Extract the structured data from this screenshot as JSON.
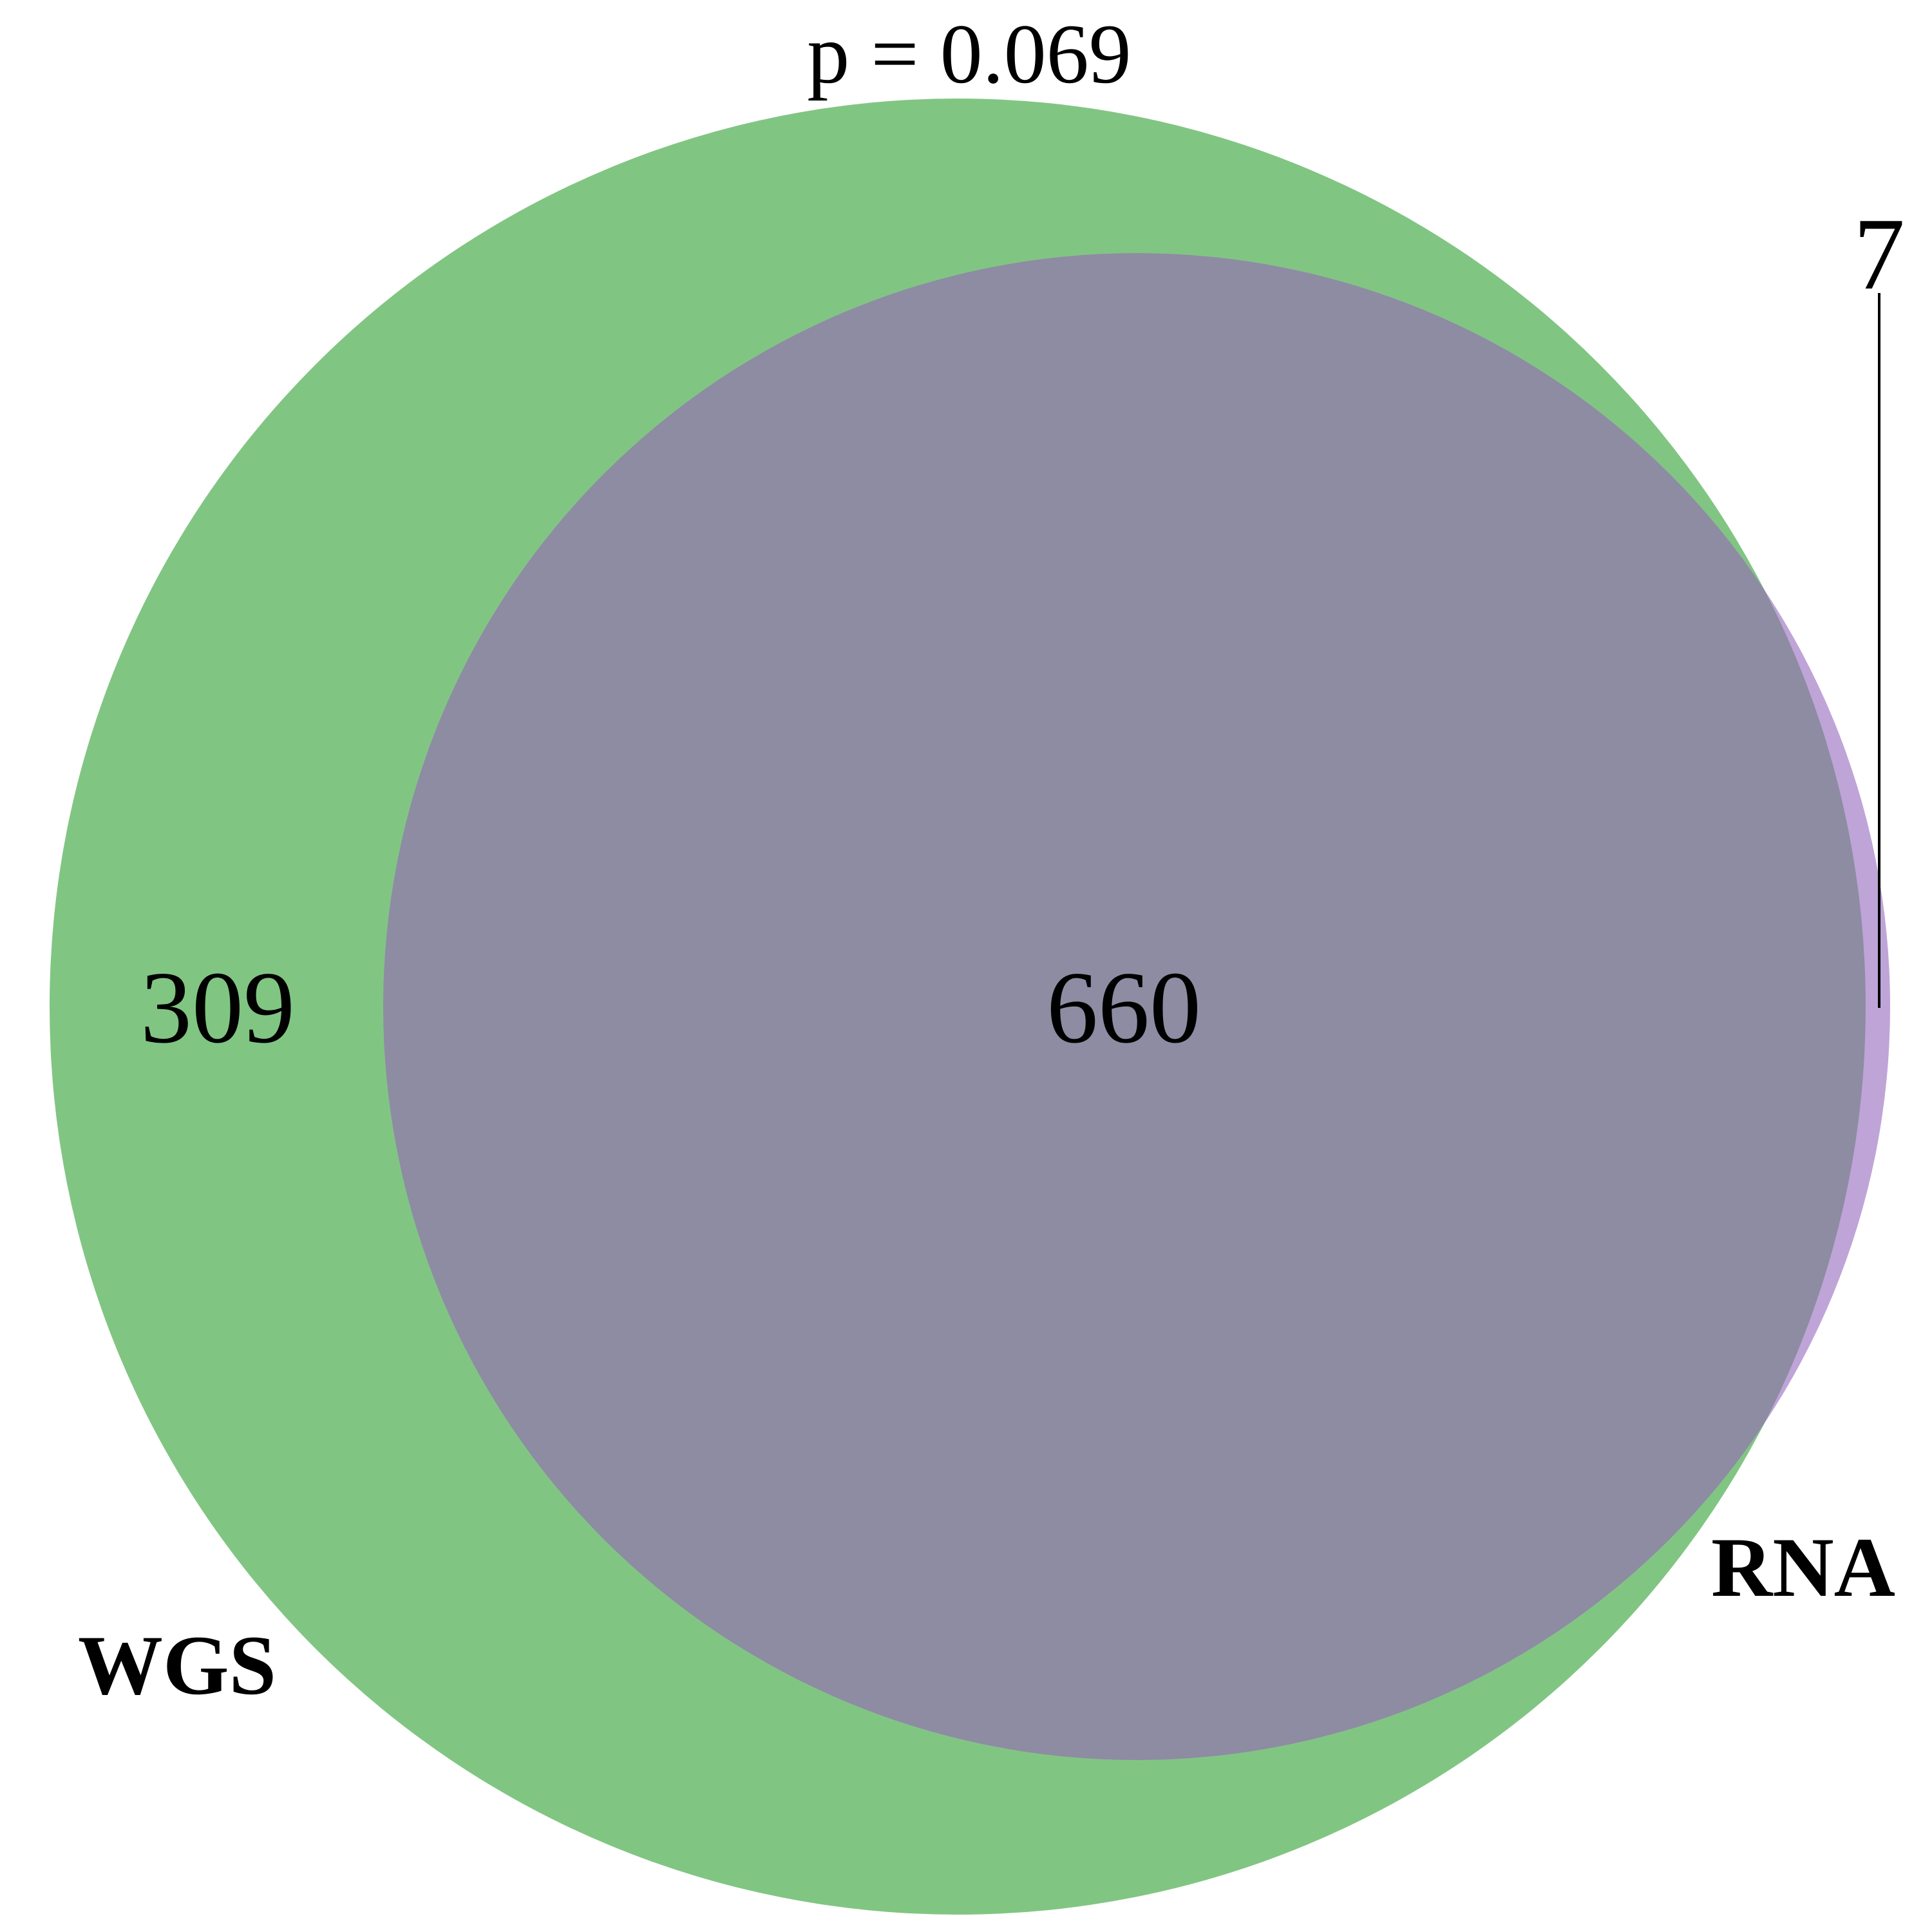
{
  "diagram": {
    "p_value_label": "p = 0.069",
    "sets": [
      {
        "key": "wgs",
        "label": "WGS",
        "color": "#81c583"
      },
      {
        "key": "rna",
        "label": "RNA",
        "color": "#bfa4d8"
      }
    ],
    "overlap_color": "#8d8ca2",
    "regions": {
      "wgs_only": "309",
      "both": "660",
      "rna_only": "7"
    }
  }
}
